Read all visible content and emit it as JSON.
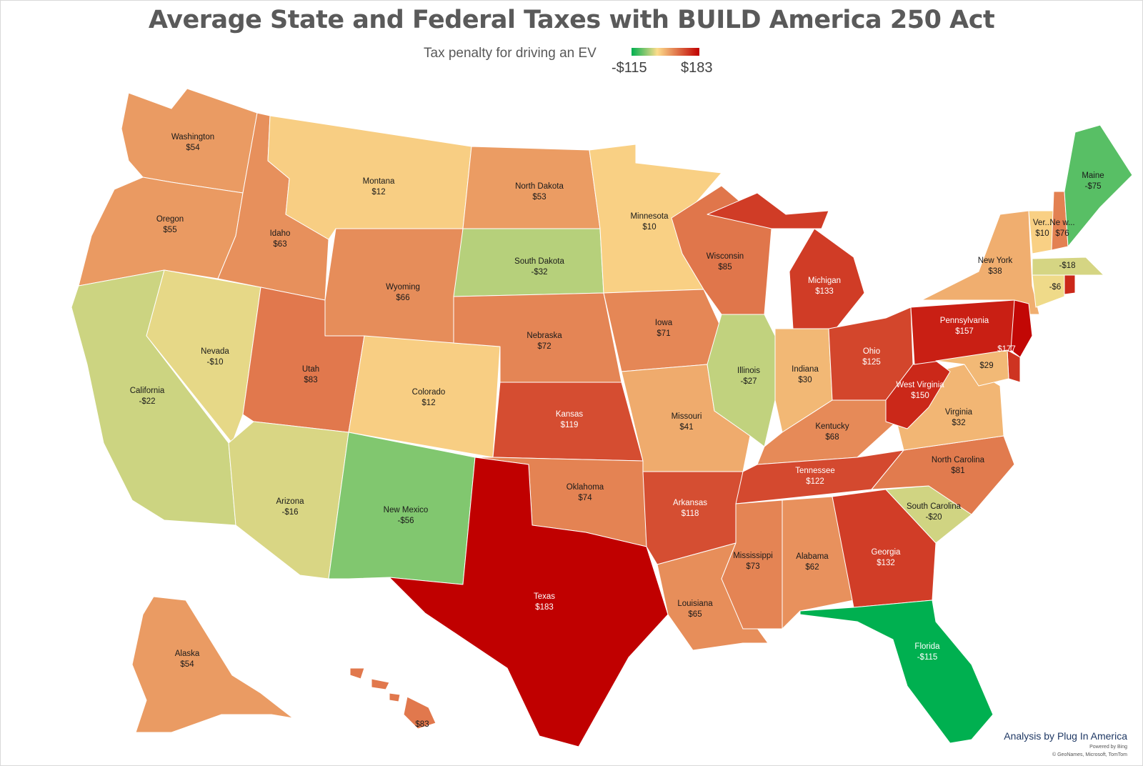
{
  "title": "Average State and Federal Taxes with BUILD America 250 Act",
  "legend": {
    "caption": "Tax penalty for driving an EV",
    "min_label": "-$115",
    "max_label": "$183",
    "min_value": -115,
    "max_value": 183,
    "colors": [
      "#00b050",
      "#fcdc8c",
      "#c00000"
    ]
  },
  "credit": "Analysis by Plug In America",
  "powered_by": "Powered by Bing",
  "attribution": "© GeoNames, Microsoft, TomTom",
  "states": [
    {
      "id": "WA",
      "name": "Washington",
      "label": "$54",
      "value": 54
    },
    {
      "id": "OR",
      "name": "Oregon",
      "label": "$55",
      "value": 55
    },
    {
      "id": "CA",
      "name": "California",
      "label": "-$22",
      "value": -22
    },
    {
      "id": "NV",
      "name": "Nevada",
      "label": "-$10",
      "value": -10
    },
    {
      "id": "ID",
      "name": "Idaho",
      "label": "$63",
      "value": 63
    },
    {
      "id": "MT",
      "name": "Montana",
      "label": "$12",
      "value": 12
    },
    {
      "id": "WY",
      "name": "Wyoming",
      "label": "$66",
      "value": 66
    },
    {
      "id": "UT",
      "name": "Utah",
      "label": "$83",
      "value": 83
    },
    {
      "id": "AZ",
      "name": "Arizona",
      "label": "-$16",
      "value": -16
    },
    {
      "id": "CO",
      "name": "Colorado",
      "label": "$12",
      "value": 12
    },
    {
      "id": "NM",
      "name": "New Mexico",
      "label": "-$56",
      "value": -56
    },
    {
      "id": "ND",
      "name": "North Dakota",
      "label": "$53",
      "value": 53
    },
    {
      "id": "SD",
      "name": "South Dakota",
      "label": "-$32",
      "value": -32
    },
    {
      "id": "NE",
      "name": "Nebraska",
      "label": "$72",
      "value": 72
    },
    {
      "id": "KS",
      "name": "Kansas",
      "label": "$119",
      "value": 119
    },
    {
      "id": "OK",
      "name": "Oklahoma",
      "label": "$74",
      "value": 74
    },
    {
      "id": "TX",
      "name": "Texas",
      "label": "$183",
      "value": 183
    },
    {
      "id": "MN",
      "name": "Minnesota",
      "label": "$10",
      "value": 10
    },
    {
      "id": "IA",
      "name": "Iowa",
      "label": "$71",
      "value": 71
    },
    {
      "id": "MO",
      "name": "Missouri",
      "label": "$41",
      "value": 41
    },
    {
      "id": "AR",
      "name": "Arkansas",
      "label": "$118",
      "value": 118
    },
    {
      "id": "LA",
      "name": "Louisiana",
      "label": "$65",
      "value": 65
    },
    {
      "id": "WI",
      "name": "Wisconsin",
      "label": "$85",
      "value": 85
    },
    {
      "id": "IL",
      "name": "Illinois",
      "label": "-$27",
      "value": -27
    },
    {
      "id": "MI",
      "name": "Michigan",
      "label": "$133",
      "value": 133
    },
    {
      "id": "IN",
      "name": "Indiana",
      "label": "$30",
      "value": 30
    },
    {
      "id": "OH",
      "name": "Ohio",
      "label": "$125",
      "value": 125
    },
    {
      "id": "KY",
      "name": "Kentucky",
      "label": "$68",
      "value": 68
    },
    {
      "id": "TN",
      "name": "Tennessee",
      "label": "$122",
      "value": 122
    },
    {
      "id": "MS",
      "name": "Mississippi",
      "label": "$73",
      "value": 73
    },
    {
      "id": "AL",
      "name": "Alabama",
      "label": "$62",
      "value": 62
    },
    {
      "id": "GA",
      "name": "Georgia",
      "label": "$132",
      "value": 132
    },
    {
      "id": "FL",
      "name": "Florida",
      "label": "-$115",
      "value": -115
    },
    {
      "id": "SC",
      "name": "South Carolina",
      "label": "-$20",
      "value": -20
    },
    {
      "id": "NC",
      "name": "North Carolina",
      "label": "$81",
      "value": 81
    },
    {
      "id": "VA",
      "name": "Virginia",
      "label": "$32",
      "value": 32
    },
    {
      "id": "WV",
      "name": "West Virginia",
      "label": "$150",
      "value": 150
    },
    {
      "id": "PA",
      "name": "Pennsylvania",
      "label": "$157",
      "value": 157
    },
    {
      "id": "NY",
      "name": "New York",
      "label": "$38",
      "value": 38
    },
    {
      "id": "VT",
      "name": "Ver...",
      "label": "$10",
      "value": 10
    },
    {
      "id": "NH",
      "name": "Ne w...",
      "label": "$76",
      "value": 76
    },
    {
      "id": "ME",
      "name": "Maine",
      "label": "-$75",
      "value": -75
    },
    {
      "id": "MA",
      "name": "",
      "label": "-$18",
      "value": -18
    },
    {
      "id": "CT",
      "name": "",
      "label": "-$6",
      "value": -6
    },
    {
      "id": "RI",
      "name": "",
      "label": "",
      "value": 150
    },
    {
      "id": "NJ",
      "name": "",
      "label": "$177",
      "value": 177
    },
    {
      "id": "DE",
      "name": "",
      "label": "",
      "value": 140
    },
    {
      "id": "MD",
      "name": "",
      "label": "$29",
      "value": 29
    },
    {
      "id": "AK",
      "name": "Alaska",
      "label": "$54",
      "value": 54
    },
    {
      "id": "HI",
      "name": "",
      "label": "$83",
      "value": 83
    }
  ]
}
